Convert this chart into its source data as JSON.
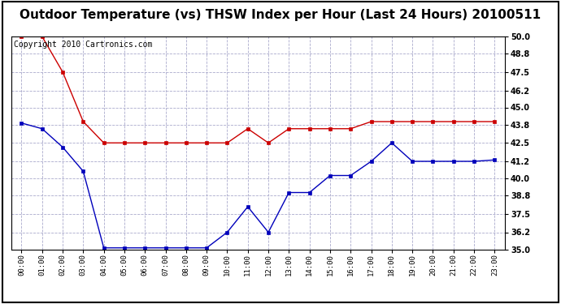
{
  "title": "Outdoor Temperature (vs) THSW Index per Hour (Last 24 Hours) 20100511",
  "copyright": "Copyright 2010 Cartronics.com",
  "x_labels": [
    "00:00",
    "01:00",
    "02:00",
    "03:00",
    "04:00",
    "05:00",
    "06:00",
    "07:00",
    "08:00",
    "09:00",
    "10:00",
    "11:00",
    "12:00",
    "13:00",
    "14:00",
    "15:00",
    "16:00",
    "17:00",
    "18:00",
    "19:00",
    "20:00",
    "21:00",
    "22:00",
    "23:00"
  ],
  "blue_data": [
    43.9,
    43.5,
    42.2,
    40.5,
    35.1,
    35.1,
    35.1,
    35.1,
    35.1,
    35.1,
    36.2,
    38.0,
    36.2,
    39.0,
    39.0,
    40.2,
    40.2,
    41.2,
    42.5,
    41.2,
    41.2,
    41.2,
    41.2,
    41.3
  ],
  "red_data": [
    50.0,
    50.0,
    47.5,
    44.0,
    42.5,
    42.5,
    42.5,
    42.5,
    42.5,
    42.5,
    42.5,
    43.5,
    42.5,
    43.5,
    43.5,
    43.5,
    43.5,
    44.0,
    44.0,
    44.0,
    44.0,
    44.0,
    44.0,
    44.0
  ],
  "y_min": 35.0,
  "y_max": 50.0,
  "y_ticks": [
    35.0,
    36.2,
    37.5,
    38.8,
    40.0,
    41.2,
    42.5,
    43.8,
    45.0,
    46.2,
    47.5,
    48.8,
    50.0
  ],
  "blue_color": "#0000bb",
  "red_color": "#cc0000",
  "bg_color": "#ffffff",
  "grid_color": "#aaaacc",
  "title_fontsize": 11,
  "copyright_fontsize": 7
}
